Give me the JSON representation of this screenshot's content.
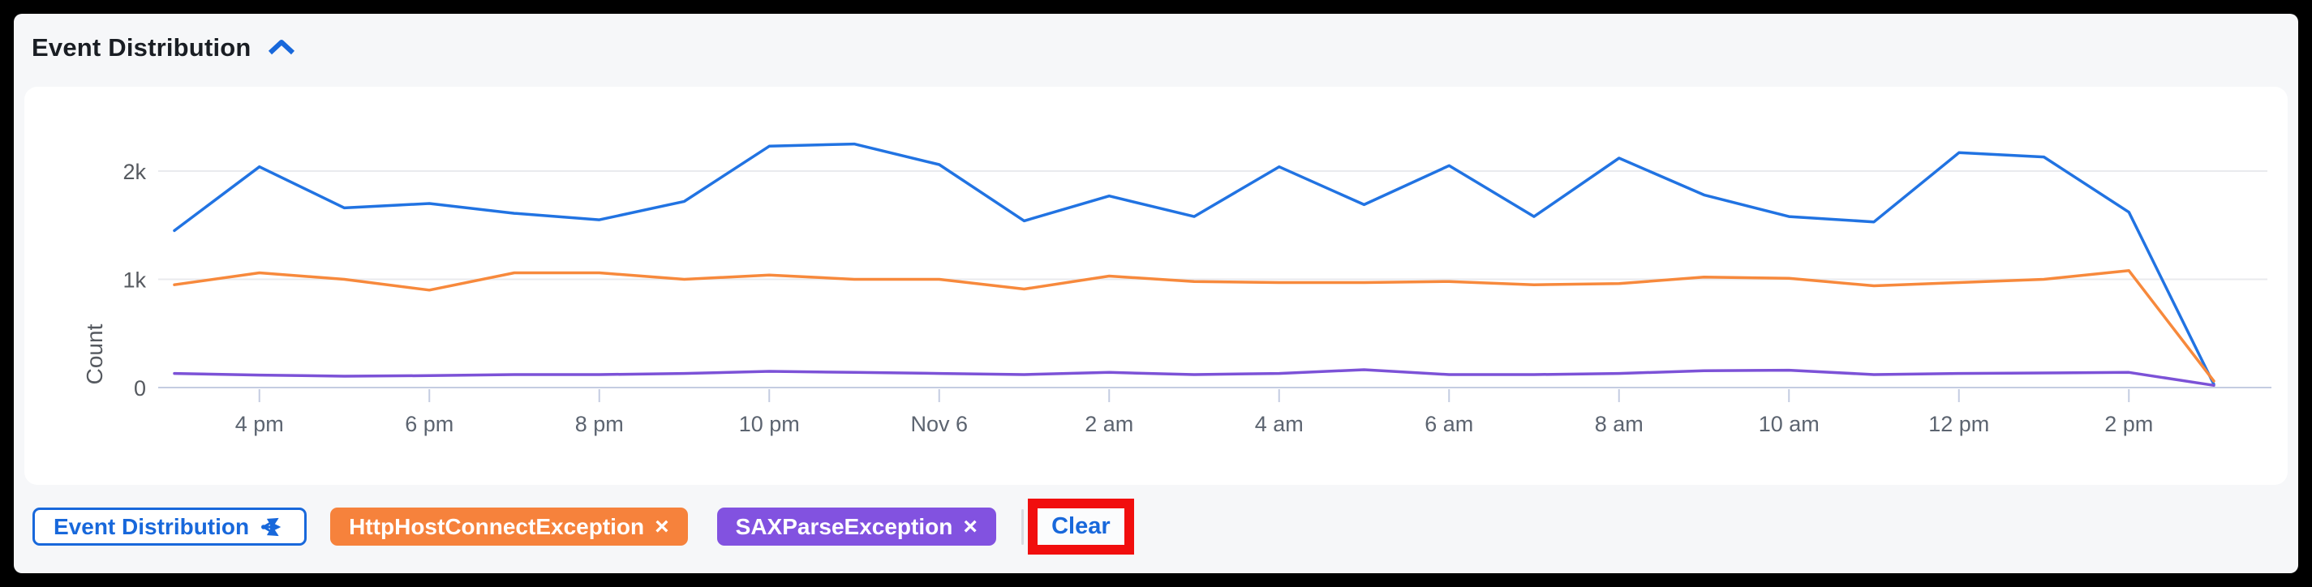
{
  "panel": {
    "title": "Event Distribution",
    "collapse_icon": "chevron-up",
    "accent_color": "#1868DB"
  },
  "chart_data": {
    "type": "line",
    "title": "Event Distribution",
    "xlabel": "",
    "ylabel": "Count",
    "ylim": [
      0,
      2500
    ],
    "grid": "horizontal",
    "legend_position": "bottom-chips",
    "points_per_series": 25,
    "x_interval": "1 hour",
    "x_ticks": [
      {
        "index": 1,
        "label": "4 pm"
      },
      {
        "index": 3,
        "label": "6 pm"
      },
      {
        "index": 5,
        "label": "8 pm"
      },
      {
        "index": 7,
        "label": "10 pm"
      },
      {
        "index": 9,
        "label": "Nov 6"
      },
      {
        "index": 11,
        "label": "2 am"
      },
      {
        "index": 13,
        "label": "4 am"
      },
      {
        "index": 15,
        "label": "6 am"
      },
      {
        "index": 17,
        "label": "8 am"
      },
      {
        "index": 19,
        "label": "10 am"
      },
      {
        "index": 21,
        "label": "12 pm"
      },
      {
        "index": 23,
        "label": "2 pm"
      }
    ],
    "y_ticks": [
      {
        "value": 0,
        "label": "0"
      },
      {
        "value": 1000,
        "label": "1k"
      },
      {
        "value": 2000,
        "label": "2k"
      }
    ],
    "series": [
      {
        "name": "Event Distribution",
        "color": "#2173E2",
        "values": [
          1450,
          2040,
          1660,
          1700,
          1610,
          1550,
          1720,
          2230,
          2250,
          2060,
          1540,
          1770,
          1580,
          2040,
          1690,
          2050,
          1580,
          2120,
          1780,
          1580,
          1530,
          2170,
          2130,
          1620,
          30
        ]
      },
      {
        "name": "HttpHostConnectException",
        "color": "#F7893C",
        "values": [
          950,
          1060,
          1000,
          900,
          1060,
          1060,
          1000,
          1040,
          1000,
          1000,
          910,
          1030,
          980,
          970,
          970,
          980,
          950,
          960,
          1020,
          1010,
          940,
          970,
          1000,
          1080,
          60
        ]
      },
      {
        "name": "SAXParseException",
        "color": "#7C52D7",
        "values": [
          130,
          115,
          105,
          110,
          120,
          120,
          130,
          150,
          140,
          130,
          120,
          140,
          120,
          130,
          165,
          120,
          120,
          130,
          155,
          160,
          120,
          130,
          135,
          140,
          20
        ]
      }
    ]
  },
  "legend": {
    "chart_chip": {
      "label": "Event Distribution",
      "icon": "share-icon"
    },
    "filter_chips": [
      {
        "label": "HttpHostConnectException",
        "close": "×",
        "color": "#F6823C"
      },
      {
        "label": "SAXParseException",
        "close": "×",
        "color": "#8252E0"
      }
    ],
    "clear_label": "Clear"
  },
  "annotation": {
    "type": "target-highlight-box",
    "target": "Clear",
    "color": "#F10E0E"
  }
}
